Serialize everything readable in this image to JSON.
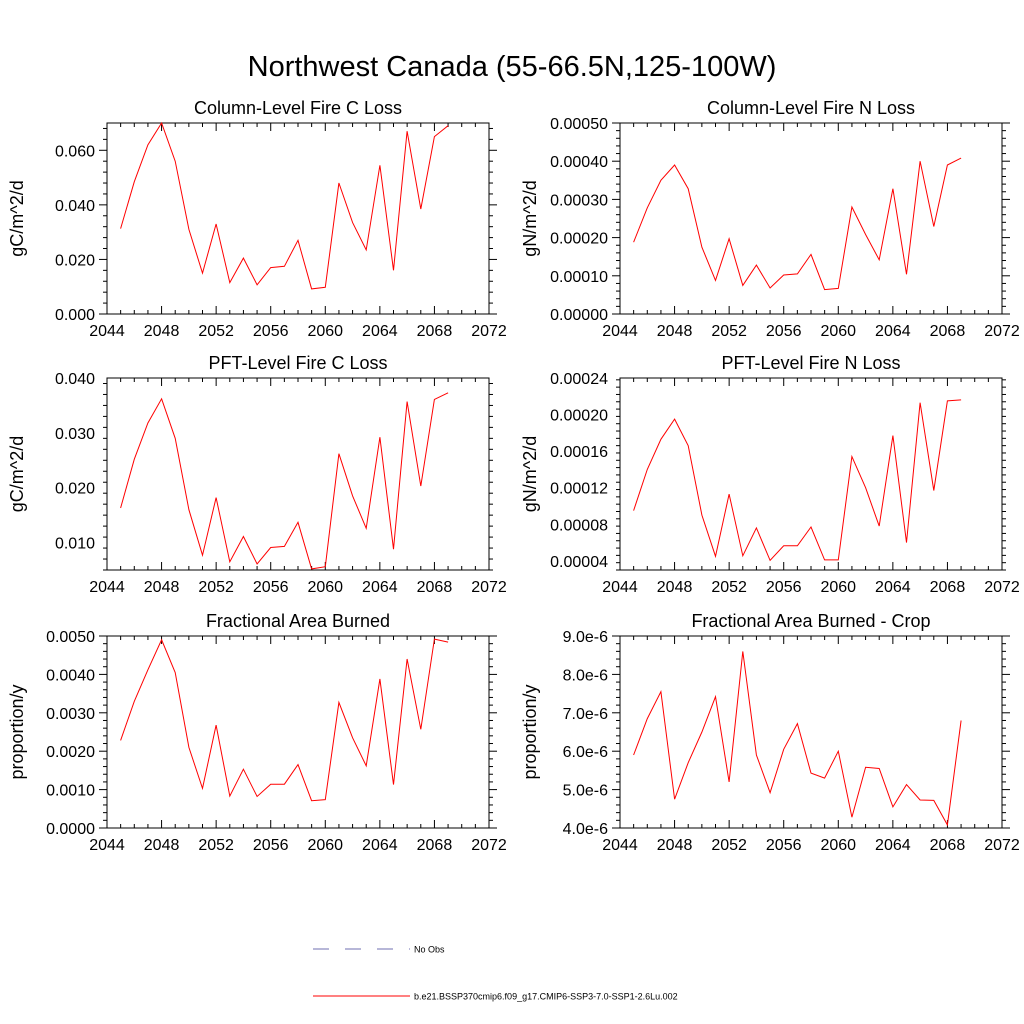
{
  "page": {
    "title": "Northwest Canada (55-66.5N,125-100W)"
  },
  "legend": {
    "position": "bottom-center",
    "items": [
      {
        "label": "No Obs",
        "color": "#6f6fb0",
        "style": "dashed"
      },
      {
        "label": "b.e21.BSSP370cmip6.f09_g17.CMIP6-SSP3-7.0-SSP1-2.6Lu.002",
        "color": "#ff0000",
        "style": "solid"
      }
    ]
  },
  "chart_data": [
    {
      "type": "line",
      "title": "Column-Level Fire C Loss",
      "ylabel": "gC/m^2/d",
      "xlim": [
        2044,
        2072
      ],
      "ylim": [
        0.0,
        0.07
      ],
      "xticks": [
        2044,
        2048,
        2052,
        2056,
        2060,
        2064,
        2068,
        2072
      ],
      "yticks": [
        0.0,
        0.02,
        0.04,
        0.06
      ],
      "ytick_labels": [
        "0.000",
        "0.020",
        "0.040",
        "0.060"
      ],
      "series": [
        {
          "color": "#ff0000",
          "x": [
            2045,
            2046,
            2047,
            2048,
            2049,
            2050,
            2051,
            2052,
            2053,
            2054,
            2055,
            2056,
            2057,
            2058,
            2059,
            2060,
            2061,
            2062,
            2063,
            2064,
            2065,
            2066,
            2067,
            2068,
            2069
          ],
          "y": [
            0.0313,
            0.0485,
            0.062,
            0.07,
            0.056,
            0.031,
            0.015,
            0.033,
            0.0115,
            0.0205,
            0.0107,
            0.017,
            0.0175,
            0.027,
            0.0092,
            0.0098,
            0.048,
            0.0335,
            0.0235,
            0.0545,
            0.016,
            0.067,
            0.0385,
            0.065,
            0.069
          ]
        }
      ]
    },
    {
      "type": "line",
      "title": "Column-Level Fire N Loss",
      "ylabel": "gN/m^2/d",
      "xlim": [
        2044,
        2072
      ],
      "ylim": [
        0.0,
        0.0005
      ],
      "xticks": [
        2044,
        2048,
        2052,
        2056,
        2060,
        2064,
        2068,
        2072
      ],
      "yticks": [
        0.0,
        0.0001,
        0.0002,
        0.0003,
        0.0004,
        0.0005
      ],
      "ytick_labels": [
        "0.00000",
        "0.00010",
        "0.00020",
        "0.00030",
        "0.00040",
        "0.00050"
      ],
      "series": [
        {
          "color": "#ff0000",
          "x": [
            2045,
            2046,
            2047,
            2048,
            2049,
            2050,
            2051,
            2052,
            2053,
            2054,
            2055,
            2056,
            2057,
            2058,
            2059,
            2060,
            2061,
            2062,
            2063,
            2064,
            2065,
            2066,
            2067,
            2068,
            2069
          ],
          "y": [
            0.000188,
            0.000278,
            0.00035,
            0.00039,
            0.000328,
            0.000175,
            8.8e-05,
            0.000197,
            7.5e-05,
            0.000128,
            6.8e-05,
            0.000102,
            0.000105,
            0.000156,
            6.4e-05,
            6.7e-05,
            0.00028,
            0.000208,
            0.000142,
            0.000328,
            0.000104,
            0.0004,
            0.000229,
            0.00039,
            0.000408
          ]
        }
      ]
    },
    {
      "type": "line",
      "title": "PFT-Level Fire C Loss",
      "ylabel": "gC/m^2/d",
      "xlim": [
        2044,
        2072
      ],
      "ylim": [
        0.005,
        0.04
      ],
      "xticks": [
        2044,
        2048,
        2052,
        2056,
        2060,
        2064,
        2068,
        2072
      ],
      "yticks": [
        0.01,
        0.02,
        0.03,
        0.04
      ],
      "ytick_labels": [
        "0.010",
        "0.020",
        "0.030",
        "0.040"
      ],
      "series": [
        {
          "color": "#ff0000",
          "x": [
            2045,
            2046,
            2047,
            2048,
            2049,
            2050,
            2051,
            2052,
            2053,
            2054,
            2055,
            2056,
            2057,
            2058,
            2059,
            2060,
            2061,
            2062,
            2063,
            2064,
            2065,
            2066,
            2067,
            2068,
            2069
          ],
          "y": [
            0.0163,
            0.0252,
            0.0318,
            0.0362,
            0.029,
            0.016,
            0.0077,
            0.0182,
            0.0065,
            0.0111,
            0.0061,
            0.0091,
            0.0093,
            0.0137,
            0.0052,
            0.0056,
            0.0262,
            0.0185,
            0.0126,
            0.0292,
            0.0088,
            0.0357,
            0.0203,
            0.0361,
            0.0373
          ]
        }
      ]
    },
    {
      "type": "line",
      "title": "PFT-Level Fire N Loss",
      "ylabel": "gN/m^2/d",
      "xlim": [
        2044,
        2072
      ],
      "ylim": [
        3e-05,
        0.00024
      ],
      "xticks": [
        2044,
        2048,
        2052,
        2056,
        2060,
        2064,
        2068,
        2072
      ],
      "yticks": [
        4e-05,
        8e-05,
        0.00012,
        0.00016,
        0.0002,
        0.00024
      ],
      "ytick_labels": [
        "0.00004",
        "0.00008",
        "0.00012",
        "0.00016",
        "0.00020",
        "0.00024"
      ],
      "series": [
        {
          "color": "#ff0000",
          "x": [
            2045,
            2046,
            2047,
            2048,
            2049,
            2050,
            2051,
            2052,
            2053,
            2054,
            2055,
            2056,
            2057,
            2058,
            2059,
            2060,
            2061,
            2062,
            2063,
            2064,
            2065,
            2066,
            2067,
            2068,
            2069
          ],
          "y": [
            9.5e-05,
            0.00014,
            0.000173,
            0.000195,
            0.000166,
            9e-05,
            4.5e-05,
            0.000113,
            4.55e-05,
            7.6e-05,
            4.05e-05,
            5.65e-05,
            5.65e-05,
            7.7e-05,
            4.1e-05,
            4.1e-05,
            0.000154,
            0.00012,
            7.8e-05,
            0.000177,
            6e-05,
            0.000213,
            0.000117,
            0.000215,
            0.000216
          ]
        }
      ]
    },
    {
      "type": "line",
      "title": "Fractional Area Burned",
      "ylabel": "proportion/y",
      "xlim": [
        2044,
        2072
      ],
      "ylim": [
        0.0,
        0.005
      ],
      "xticks": [
        2044,
        2048,
        2052,
        2056,
        2060,
        2064,
        2068,
        2072
      ],
      "yticks": [
        0.0,
        0.001,
        0.002,
        0.003,
        0.004,
        0.005
      ],
      "ytick_labels": [
        "0.0000",
        "0.0010",
        "0.0020",
        "0.0030",
        "0.0040",
        "0.0050"
      ],
      "series": [
        {
          "color": "#ff0000",
          "x": [
            2045,
            2046,
            2047,
            2048,
            2049,
            2050,
            2051,
            2052,
            2053,
            2054,
            2055,
            2056,
            2057,
            2058,
            2059,
            2060,
            2061,
            2062,
            2063,
            2064,
            2065,
            2066,
            2067,
            2068,
            2069
          ],
          "y": [
            0.00228,
            0.0033,
            0.00412,
            0.0049,
            0.00405,
            0.0021,
            0.00103,
            0.00268,
            0.00083,
            0.00153,
            0.00082,
            0.00114,
            0.00114,
            0.00165,
            0.00071,
            0.00074,
            0.00327,
            0.00235,
            0.00162,
            0.00388,
            0.00113,
            0.0044,
            0.00257,
            0.00492,
            0.00484
          ]
        }
      ]
    },
    {
      "type": "line",
      "title": "Fractional Area Burned - Crop",
      "ylabel": "proportion/y",
      "xlim": [
        2044,
        2072
      ],
      "ylim": [
        4e-06,
        9e-06
      ],
      "xticks": [
        2044,
        2048,
        2052,
        2056,
        2060,
        2064,
        2068,
        2072
      ],
      "yticks": [
        4e-06,
        5e-06,
        6e-06,
        7e-06,
        8e-06,
        9e-06
      ],
      "ytick_labels": [
        "4.0e-6",
        "5.0e-6",
        "6.0e-6",
        "7.0e-6",
        "8.0e-6",
        "9.0e-6"
      ],
      "series": [
        {
          "color": "#ff0000",
          "x": [
            2045,
            2046,
            2047,
            2048,
            2049,
            2050,
            2051,
            2052,
            2053,
            2054,
            2055,
            2056,
            2057,
            2058,
            2059,
            2060,
            2061,
            2062,
            2063,
            2064,
            2065,
            2066,
            2067,
            2068,
            2069
          ],
          "y": [
            5.9e-06,
            6.85e-06,
            7.55e-06,
            4.75e-06,
            5.7e-06,
            6.5e-06,
            7.42e-06,
            5.2e-06,
            8.6e-06,
            5.9e-06,
            4.92e-06,
            6.05e-06,
            6.72e-06,
            5.43e-06,
            5.3e-06,
            6e-06,
            4.28e-06,
            5.58e-06,
            5.55e-06,
            4.55e-06,
            5.13e-06,
            4.73e-06,
            4.72e-06,
            4.08e-06,
            6.8e-06
          ]
        }
      ]
    }
  ]
}
